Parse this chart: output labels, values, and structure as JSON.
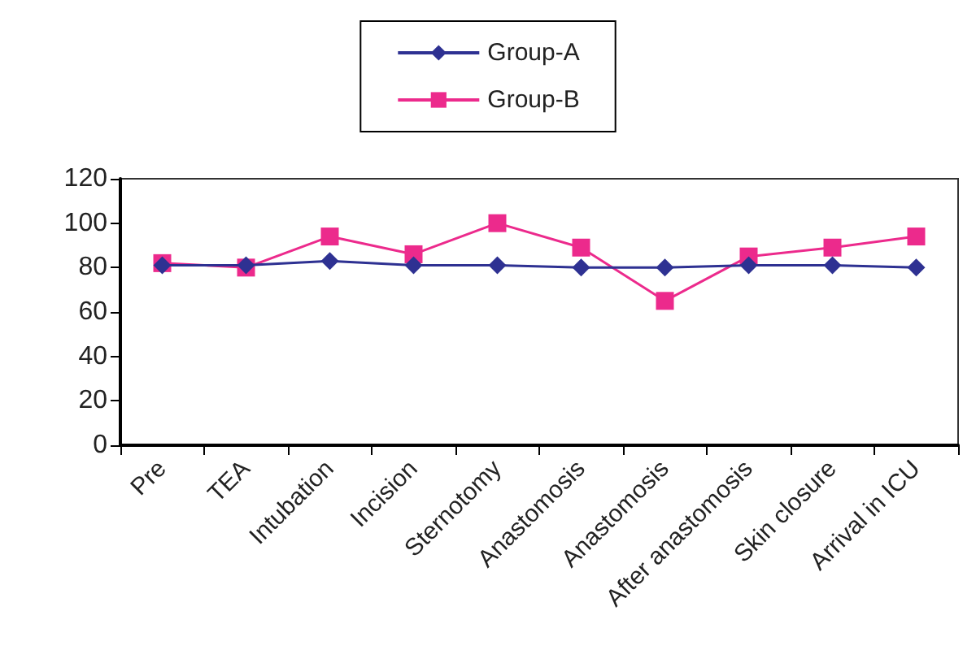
{
  "chart_data": {
    "type": "line",
    "categories": [
      "Pre",
      "TEA",
      "Intubation",
      "Incision",
      "Sternotomy",
      "Anastomosis",
      "Anastomosis",
      "After anastomosis",
      "Skin closure",
      "Arrival in ICU"
    ],
    "series": [
      {
        "name": "Group-A",
        "color": "#2e3192",
        "marker": "diamond",
        "values": [
          81,
          81,
          83,
          81,
          81,
          80,
          80,
          81,
          81,
          80
        ]
      },
      {
        "name": "Group-B",
        "color": "#ec2a8c",
        "marker": "square",
        "values": [
          82,
          80,
          94,
          86,
          100,
          89,
          65,
          85,
          89,
          94
        ]
      }
    ],
    "ylim": [
      0,
      120
    ],
    "yticks": [
      0,
      20,
      40,
      60,
      80,
      100,
      120
    ],
    "grid": false,
    "legend": "top"
  }
}
